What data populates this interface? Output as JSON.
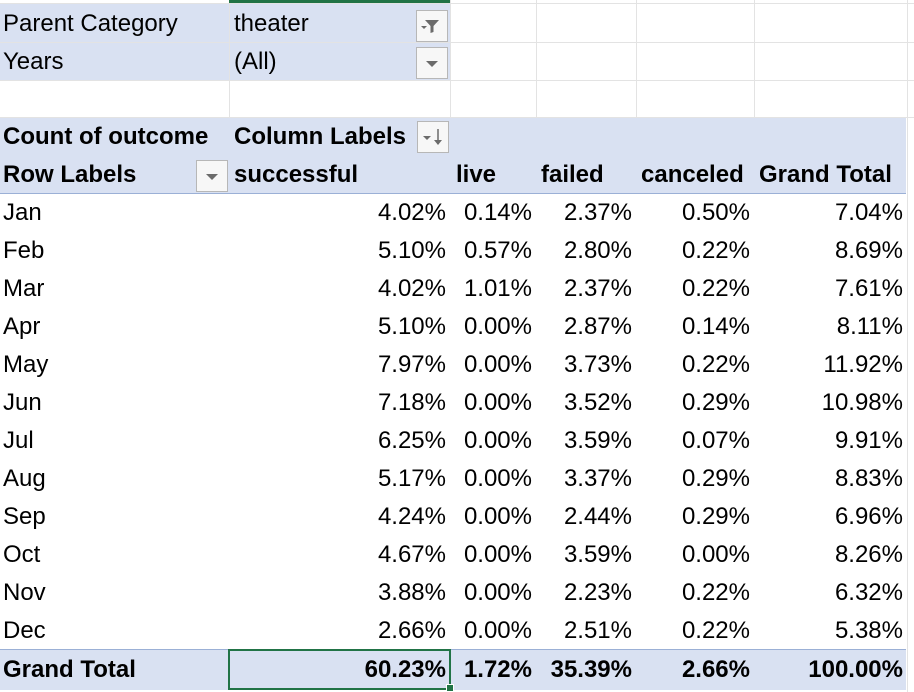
{
  "filters": [
    {
      "label": "Parent Category",
      "value": "theater",
      "icon": "filter-applied-icon"
    },
    {
      "label": "Years",
      "value": "(All)",
      "icon": "dropdown-arrow-icon"
    }
  ],
  "pivot": {
    "value_header": "Count of outcome",
    "column_labels": "Column Labels",
    "column_labels_icon": "sort-dropdown-icon",
    "row_labels": "Row Labels",
    "row_labels_icon": "dropdown-arrow-icon",
    "columns": [
      "successful",
      "live",
      "failed",
      "canceled",
      "Grand Total"
    ],
    "rows": [
      {
        "label": "Jan",
        "values": [
          "4.02%",
          "0.14%",
          "2.37%",
          "0.50%",
          "7.04%"
        ]
      },
      {
        "label": "Feb",
        "values": [
          "5.10%",
          "0.57%",
          "2.80%",
          "0.22%",
          "8.69%"
        ]
      },
      {
        "label": "Mar",
        "values": [
          "4.02%",
          "1.01%",
          "2.37%",
          "0.22%",
          "7.61%"
        ]
      },
      {
        "label": "Apr",
        "values": [
          "5.10%",
          "0.00%",
          "2.87%",
          "0.14%",
          "8.11%"
        ]
      },
      {
        "label": "May",
        "values": [
          "7.97%",
          "0.00%",
          "3.73%",
          "0.22%",
          "11.92%"
        ]
      },
      {
        "label": "Jun",
        "values": [
          "7.18%",
          "0.00%",
          "3.52%",
          "0.29%",
          "10.98%"
        ]
      },
      {
        "label": "Jul",
        "values": [
          "6.25%",
          "0.00%",
          "3.59%",
          "0.07%",
          "9.91%"
        ]
      },
      {
        "label": "Aug",
        "values": [
          "5.17%",
          "0.00%",
          "3.37%",
          "0.29%",
          "8.83%"
        ]
      },
      {
        "label": "Sep",
        "values": [
          "4.24%",
          "0.00%",
          "2.44%",
          "0.29%",
          "6.96%"
        ]
      },
      {
        "label": "Oct",
        "values": [
          "4.67%",
          "0.00%",
          "3.59%",
          "0.00%",
          "8.26%"
        ]
      },
      {
        "label": "Nov",
        "values": [
          "3.88%",
          "0.00%",
          "2.23%",
          "0.22%",
          "6.32%"
        ]
      },
      {
        "label": "Dec",
        "values": [
          "2.66%",
          "0.00%",
          "2.51%",
          "0.22%",
          "5.38%"
        ]
      }
    ],
    "grand_total": {
      "label": "Grand Total",
      "values": [
        "60.23%",
        "1.72%",
        "35.39%",
        "2.66%",
        "100.00%"
      ]
    }
  },
  "colors": {
    "band": "#d9e1f2",
    "selection": "#217346",
    "gridline": "#e3e3e3"
  }
}
